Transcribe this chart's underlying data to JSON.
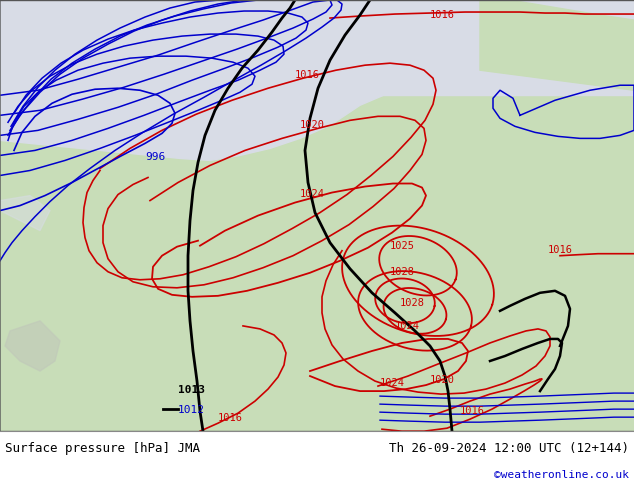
{
  "title_left": "Surface pressure [hPa] JMA",
  "title_right": "Th 26-09-2024 12:00 UTC (12+144)",
  "credit": "©weatheronline.co.uk",
  "fig_bg": "#ffffff",
  "ocean_color": "#d8dce6",
  "land_color": "#c8ddb8",
  "coast_color": "#888888",
  "isobar_red": "#cc0000",
  "isobar_blue": "#0000cc",
  "isobar_black": "#000000",
  "title_fontsize": 9,
  "credit_color": "#0000cc"
}
